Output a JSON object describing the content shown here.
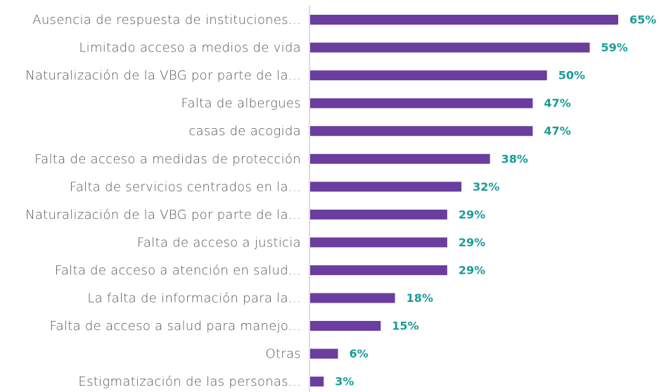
{
  "chart_data": {
    "type": "bar",
    "orientation": "horizontal",
    "categories": [
      "Ausencia de respuesta de instituciones...",
      "Limitado acceso a medios de vida",
      "Naturalización de la VBG por parte de la...",
      "Falta de albergues",
      "casas de acogida",
      "Falta de acceso a medidas de protección",
      "Falta de servicios centrados en la...",
      "Naturalización de la VBG por parte de la...",
      "Falta de acceso a justicia",
      "Falta de acceso a atención en salud...",
      "La falta de información para la...",
      "Falta de acceso a salud para manejo...",
      "Otras",
      "Estigmatización de las personas..."
    ],
    "values": [
      65,
      59,
      50,
      47,
      47,
      38,
      32,
      29,
      29,
      29,
      18,
      15,
      6,
      3
    ],
    "value_labels": [
      "65%",
      "59%",
      "50%",
      "47%",
      "47%",
      "38%",
      "32%",
      "29%",
      "29%",
      "29%",
      "18%",
      "15%",
      "6%",
      "3%"
    ],
    "color": "#6a3d9e"
  }
}
